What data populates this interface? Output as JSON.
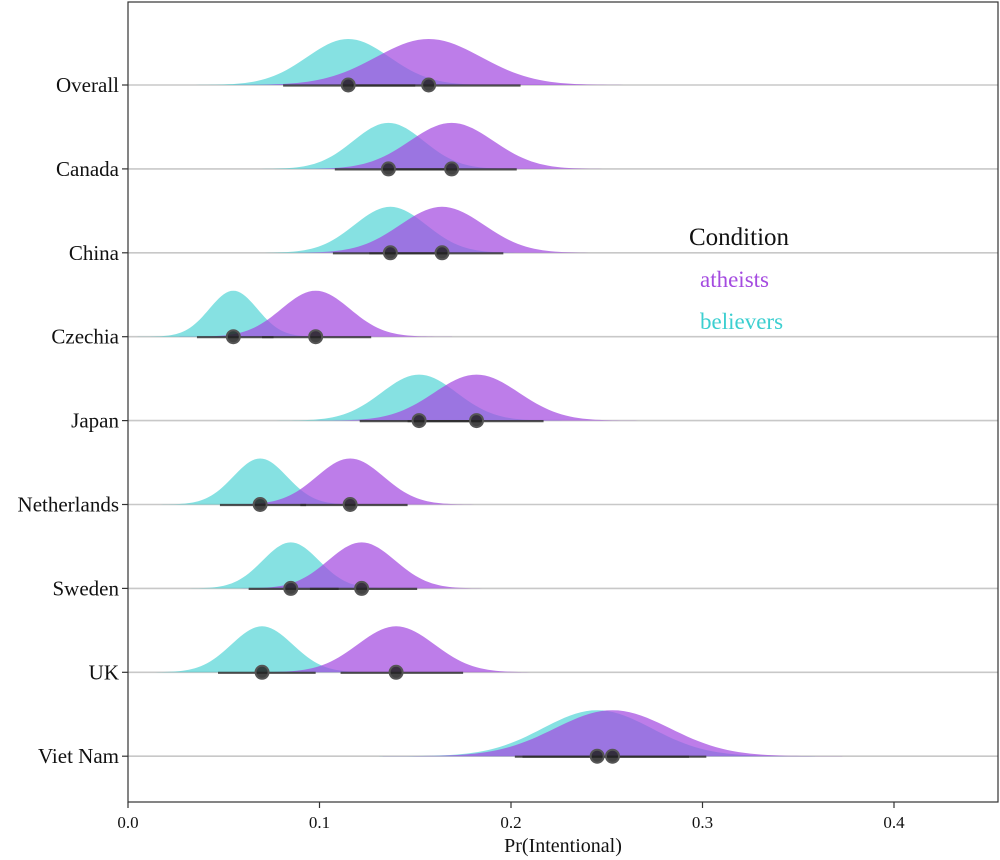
{
  "chart_data": {
    "type": "ridgeline",
    "xlabel": "Pr(Intentional)",
    "ylabel": "",
    "xlim": [
      0.0,
      0.456
    ],
    "xticks": [
      "0.0",
      "0.1",
      "0.2",
      "0.3",
      "0.4"
    ],
    "xtick_values": [
      0.0,
      0.1,
      0.2,
      0.3,
      0.4
    ],
    "grid": "horizontal baselines",
    "legend": {
      "title": "Condition",
      "placement": "right",
      "entries": [
        "atheists",
        "believers"
      ]
    },
    "colors": {
      "atheists": "#a44be0",
      "believers": "#3ccfd0"
    },
    "categories": [
      "Overall",
      "Canada",
      "China",
      "Czechia",
      "Japan",
      "Netherlands",
      "Sweden",
      "UK",
      "Viet Nam"
    ],
    "series": [
      {
        "name": "atheists",
        "means": [
          0.157,
          0.169,
          0.164,
          0.098,
          0.182,
          0.116,
          0.122,
          0.14,
          0.253
        ],
        "ci_low": [
          0.117,
          0.133,
          0.126,
          0.07,
          0.146,
          0.09,
          0.095,
          0.111,
          0.206
        ],
        "ci_high": [
          0.205,
          0.203,
          0.196,
          0.127,
          0.217,
          0.146,
          0.151,
          0.175,
          0.302
        ]
      },
      {
        "name": "believers",
        "means": [
          0.115,
          0.136,
          0.137,
          0.055,
          0.152,
          0.069,
          0.085,
          0.07,
          0.245
        ],
        "ci_low": [
          0.081,
          0.108,
          0.107,
          0.036,
          0.121,
          0.048,
          0.063,
          0.047,
          0.202
        ],
        "ci_high": [
          0.15,
          0.167,
          0.167,
          0.076,
          0.184,
          0.093,
          0.11,
          0.098,
          0.293
        ]
      }
    ]
  }
}
